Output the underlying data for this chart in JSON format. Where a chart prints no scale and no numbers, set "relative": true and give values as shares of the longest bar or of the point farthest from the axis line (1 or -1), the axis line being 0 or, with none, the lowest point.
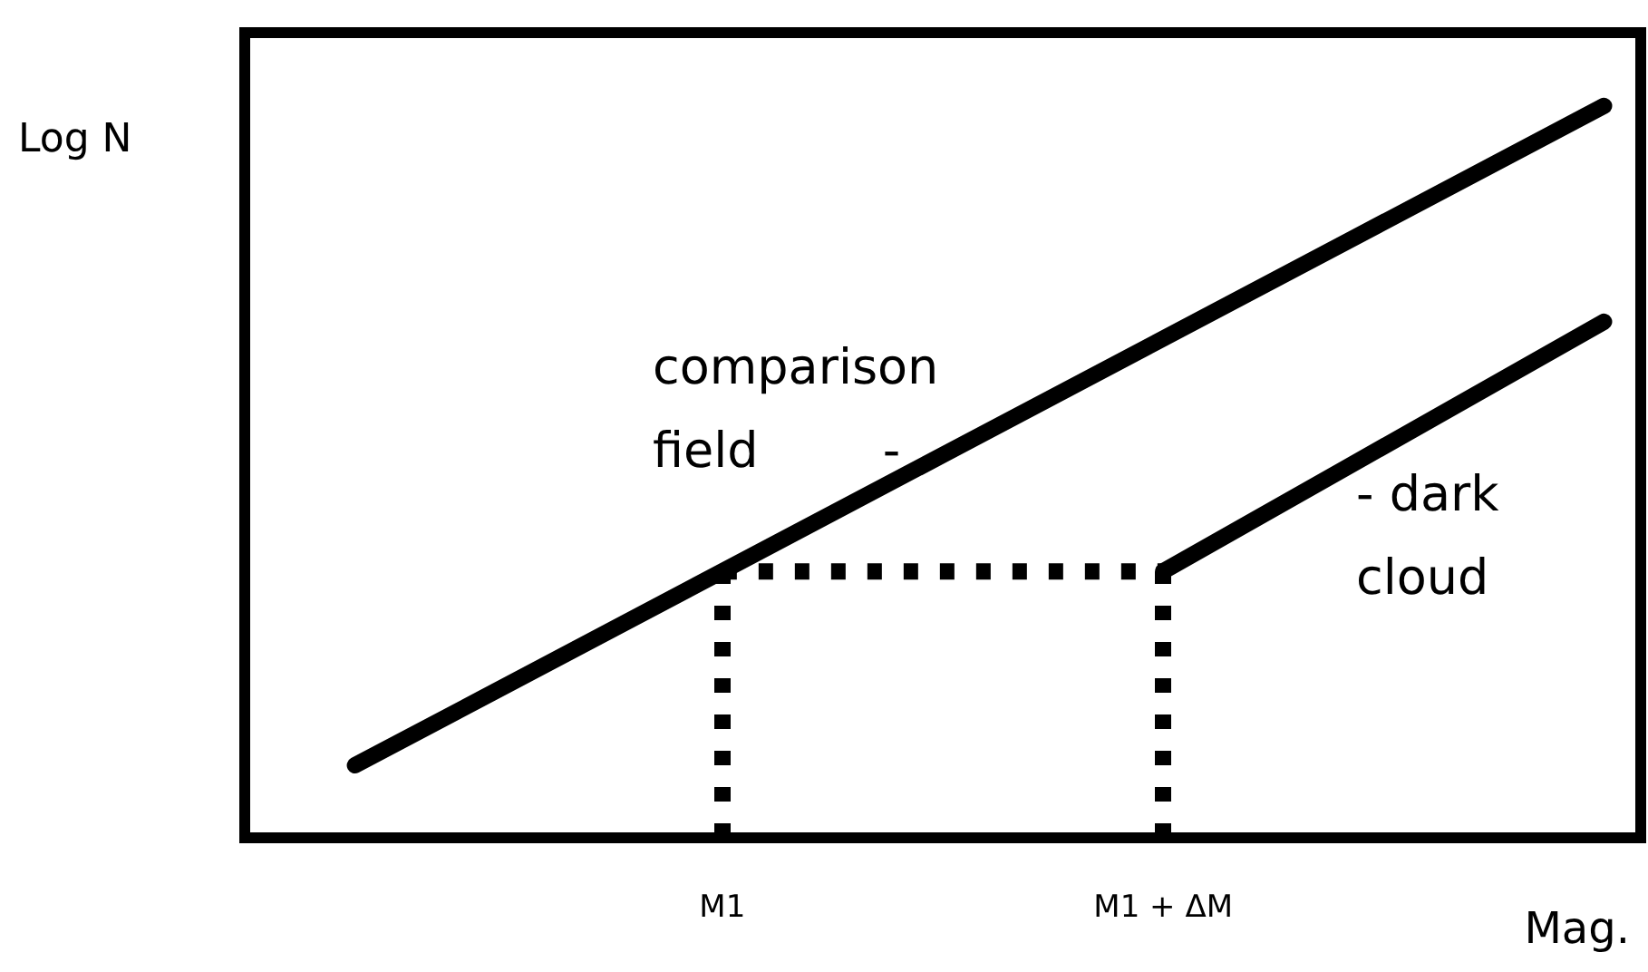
{
  "chart_data": {
    "type": "line",
    "relative": true,
    "xlabel": "Mag.",
    "ylabel": "Log N",
    "categories": [
      null,
      null,
      null,
      null,
      null,
      null,
      "M1",
      null,
      null,
      null,
      null,
      null,
      "M1 + ΔM",
      null,
      null,
      null,
      null,
      null,
      null
    ],
    "grid": false,
    "series": [
      {
        "color": "#000000",
        "line_style": "solid",
        "values": [
          null,
          0.099,
          null,
          null,
          null,
          null,
          null,
          null,
          null,
          null,
          null,
          null,
          null,
          null,
          null,
          null,
          null,
          null,
          1
        ]
      },
      {
        "color": "#000000",
        "line_style": "solid",
        "values": [
          null,
          null,
          null,
          null,
          null,
          null,
          null,
          null,
          null,
          null,
          null,
          null,
          0.364,
          null,
          null,
          null,
          null,
          null,
          0.705
        ]
      },
      {
        "color": "#000000",
        "line_style": "dotted",
        "values": [
          null,
          null,
          null,
          null,
          null,
          null,
          0.364,
          null,
          null,
          null,
          null,
          null,
          0.364,
          null,
          null,
          null,
          null,
          null,
          null
        ]
      }
    ],
    "ref_lines": [
      {
        "axis": "x",
        "value": "M1",
        "color": "#000000",
        "line_style": "dotted"
      },
      {
        "axis": "x",
        "value": "M1 + ΔM",
        "color": "#000000",
        "line_style": "dotted"
      }
    ],
    "annotations": [
      "comparison\nfield        -",
      "- dark\ncloud"
    ]
  }
}
